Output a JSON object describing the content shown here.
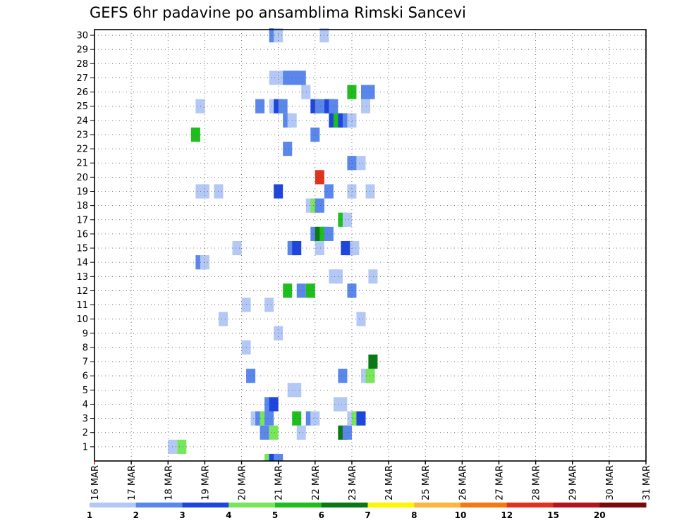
{
  "chart_data": {
    "type": "heatmap",
    "title": "GEFS 6hr padavine po ansamblima Rimski Sancevi",
    "x_tick_labels": [
      "16 MAR",
      "17 MAR",
      "18 MAR",
      "19 MAR",
      "20 MAR",
      "21 MAR",
      "22 MAR",
      "23 MAR",
      "24 MAR",
      "25 MAR",
      "26 MAR",
      "27 MAR",
      "28 MAR",
      "29 MAR",
      "30 MAR",
      "31 MAR"
    ],
    "y_tick_labels": [
      "1",
      "2",
      "3",
      "4",
      "5",
      "6",
      "7",
      "8",
      "9",
      "10",
      "11",
      "12",
      "13",
      "14",
      "15",
      "16",
      "17",
      "18",
      "19",
      "20",
      "21",
      "22",
      "23",
      "24",
      "25",
      "26",
      "27",
      "28",
      "29",
      "30"
    ],
    "xlim": [
      0,
      60
    ],
    "ylim": [
      0,
      30
    ],
    "grid": true,
    "legend": {
      "placement": "bottom",
      "labels": [
        "1",
        "2",
        "3",
        "4",
        "5",
        "6",
        "7",
        "8",
        "10",
        "12",
        "15",
        "20"
      ],
      "colors": [
        "#b4c8f5",
        "#5a87eb",
        "#1e46dc",
        "#78e65a",
        "#1ebe1e",
        "#0a7814",
        "#fff500",
        "#ffb43c",
        "#f57814",
        "#e1321e",
        "#b4141e",
        "#780a0a"
      ]
    },
    "cells_note": "x = 6-hour step index from 16 MAR 00z, y = ensemble member, v = precipitation class color index",
    "cells": [
      {
        "x": 18.5,
        "y": 0,
        "c": 3
      },
      {
        "x": 19,
        "y": 0,
        "c": 2
      },
      {
        "x": 19.5,
        "y": 0,
        "c": 1
      },
      {
        "x": 8,
        "y": 1,
        "c": 0
      },
      {
        "x": 9,
        "y": 1,
        "c": 3
      },
      {
        "x": 18,
        "y": 2,
        "c": 1
      },
      {
        "x": 19,
        "y": 2,
        "c": 3
      },
      {
        "x": 22,
        "y": 2,
        "c": 0
      },
      {
        "x": 26.5,
        "y": 2,
        "c": 5
      },
      {
        "x": 27,
        "y": 2,
        "c": 1
      },
      {
        "x": 17,
        "y": 3,
        "c": 0
      },
      {
        "x": 17.5,
        "y": 3,
        "c": 1
      },
      {
        "x": 18,
        "y": 3,
        "c": 3
      },
      {
        "x": 18.5,
        "y": 3,
        "c": 1
      },
      {
        "x": 21.5,
        "y": 3,
        "c": 4
      },
      {
        "x": 23,
        "y": 3,
        "c": 1
      },
      {
        "x": 23.5,
        "y": 3,
        "c": 0
      },
      {
        "x": 27.5,
        "y": 3,
        "c": 0
      },
      {
        "x": 28,
        "y": 3,
        "c": 3
      },
      {
        "x": 28.5,
        "y": 3,
        "c": 2
      },
      {
        "x": 18.5,
        "y": 4,
        "c": 1
      },
      {
        "x": 19,
        "y": 4,
        "c": 2
      },
      {
        "x": 26,
        "y": 4,
        "c": 0
      },
      {
        "x": 26.5,
        "y": 4,
        "c": 0
      },
      {
        "x": 21,
        "y": 5,
        "c": 0
      },
      {
        "x": 21.5,
        "y": 5,
        "c": 0
      },
      {
        "x": 16.5,
        "y": 6,
        "c": 1
      },
      {
        "x": 26.5,
        "y": 6,
        "c": 1
      },
      {
        "x": 29,
        "y": 6,
        "c": 0
      },
      {
        "x": 29.5,
        "y": 6,
        "c": 3
      },
      {
        "x": 29.8,
        "y": 7,
        "c": 5
      },
      {
        "x": 16,
        "y": 8,
        "c": 0
      },
      {
        "x": 19.5,
        "y": 9,
        "c": 0
      },
      {
        "x": 13.5,
        "y": 10,
        "c": 0
      },
      {
        "x": 28.5,
        "y": 10,
        "c": 0
      },
      {
        "x": 16,
        "y": 11,
        "c": 0
      },
      {
        "x": 18.5,
        "y": 11,
        "c": 0
      },
      {
        "x": 20.5,
        "y": 12,
        "c": 4
      },
      {
        "x": 22,
        "y": 12,
        "c": 1
      },
      {
        "x": 23,
        "y": 12,
        "c": 4
      },
      {
        "x": 27.5,
        "y": 12,
        "c": 1
      },
      {
        "x": 25.5,
        "y": 13,
        "c": 0
      },
      {
        "x": 26,
        "y": 13,
        "c": 0
      },
      {
        "x": 29.8,
        "y": 13,
        "c": 0
      },
      {
        "x": 11,
        "y": 14,
        "c": 1
      },
      {
        "x": 11.5,
        "y": 14,
        "c": 0
      },
      {
        "x": 15,
        "y": 15,
        "c": 0
      },
      {
        "x": 21,
        "y": 15,
        "c": 1
      },
      {
        "x": 21.5,
        "y": 15,
        "c": 2
      },
      {
        "x": 24,
        "y": 15,
        "c": 0
      },
      {
        "x": 26.8,
        "y": 15,
        "c": 2
      },
      {
        "x": 27.3,
        "y": 15,
        "c": 2
      },
      {
        "x": 27.8,
        "y": 15,
        "c": 0
      },
      {
        "x": 23.5,
        "y": 16,
        "c": 1
      },
      {
        "x": 24,
        "y": 16,
        "c": 5
      },
      {
        "x": 24.5,
        "y": 16,
        "c": 4
      },
      {
        "x": 25,
        "y": 16,
        "c": 1
      },
      {
        "x": 26.5,
        "y": 17,
        "c": 4
      },
      {
        "x": 27,
        "y": 17,
        "c": 0
      },
      {
        "x": 23,
        "y": 18,
        "c": 0
      },
      {
        "x": 23.5,
        "y": 18,
        "c": 3
      },
      {
        "x": 24,
        "y": 18,
        "c": 1
      },
      {
        "x": 11,
        "y": 19,
        "c": 0
      },
      {
        "x": 11.5,
        "y": 19,
        "c": 0
      },
      {
        "x": 13,
        "y": 19,
        "c": 0
      },
      {
        "x": 19.5,
        "y": 19,
        "c": 2
      },
      {
        "x": 25,
        "y": 19,
        "c": 1
      },
      {
        "x": 27.5,
        "y": 19,
        "c": 0
      },
      {
        "x": 29.5,
        "y": 19,
        "c": 0
      },
      {
        "x": 24,
        "y": 20,
        "c": 9
      },
      {
        "x": 27.5,
        "y": 21,
        "c": 1
      },
      {
        "x": 28.5,
        "y": 21,
        "c": 0
      },
      {
        "x": 20.5,
        "y": 22,
        "c": 1
      },
      {
        "x": 10.5,
        "y": 23,
        "c": 4
      },
      {
        "x": 23.5,
        "y": 23,
        "c": 1
      },
      {
        "x": 20.5,
        "y": 24,
        "c": 1
      },
      {
        "x": 21,
        "y": 24,
        "c": 0
      },
      {
        "x": 25.5,
        "y": 24,
        "c": 2
      },
      {
        "x": 26,
        "y": 24,
        "c": 4
      },
      {
        "x": 26.5,
        "y": 24,
        "c": 2
      },
      {
        "x": 27,
        "y": 24,
        "c": 1
      },
      {
        "x": 27.5,
        "y": 24,
        "c": 0
      },
      {
        "x": 11,
        "y": 25,
        "c": 0
      },
      {
        "x": 17.5,
        "y": 25,
        "c": 1
      },
      {
        "x": 19,
        "y": 25,
        "c": 0
      },
      {
        "x": 19.5,
        "y": 25,
        "c": 2
      },
      {
        "x": 20,
        "y": 25,
        "c": 1
      },
      {
        "x": 23.5,
        "y": 25,
        "c": 2
      },
      {
        "x": 24,
        "y": 25,
        "c": 1
      },
      {
        "x": 25,
        "y": 25,
        "c": 2
      },
      {
        "x": 25.5,
        "y": 25,
        "c": 1
      },
      {
        "x": 29,
        "y": 25,
        "c": 0
      },
      {
        "x": 22.5,
        "y": 26,
        "c": 0
      },
      {
        "x": 27.5,
        "y": 26,
        "c": 4
      },
      {
        "x": 29,
        "y": 26,
        "c": 1
      },
      {
        "x": 29.5,
        "y": 26,
        "c": 1
      },
      {
        "x": 19,
        "y": 27,
        "c": 0
      },
      {
        "x": 20,
        "y": 27,
        "c": 0
      },
      {
        "x": 20.5,
        "y": 27,
        "c": 1
      },
      {
        "x": 21,
        "y": 27,
        "c": 1
      },
      {
        "x": 21.5,
        "y": 27,
        "c": 1
      },
      {
        "x": 22,
        "y": 27,
        "c": 1
      },
      {
        "x": 19,
        "y": 30,
        "c": 1
      },
      {
        "x": 19.5,
        "y": 30,
        "c": 0
      },
      {
        "x": 24.5,
        "y": 30,
        "c": 0
      }
    ]
  }
}
